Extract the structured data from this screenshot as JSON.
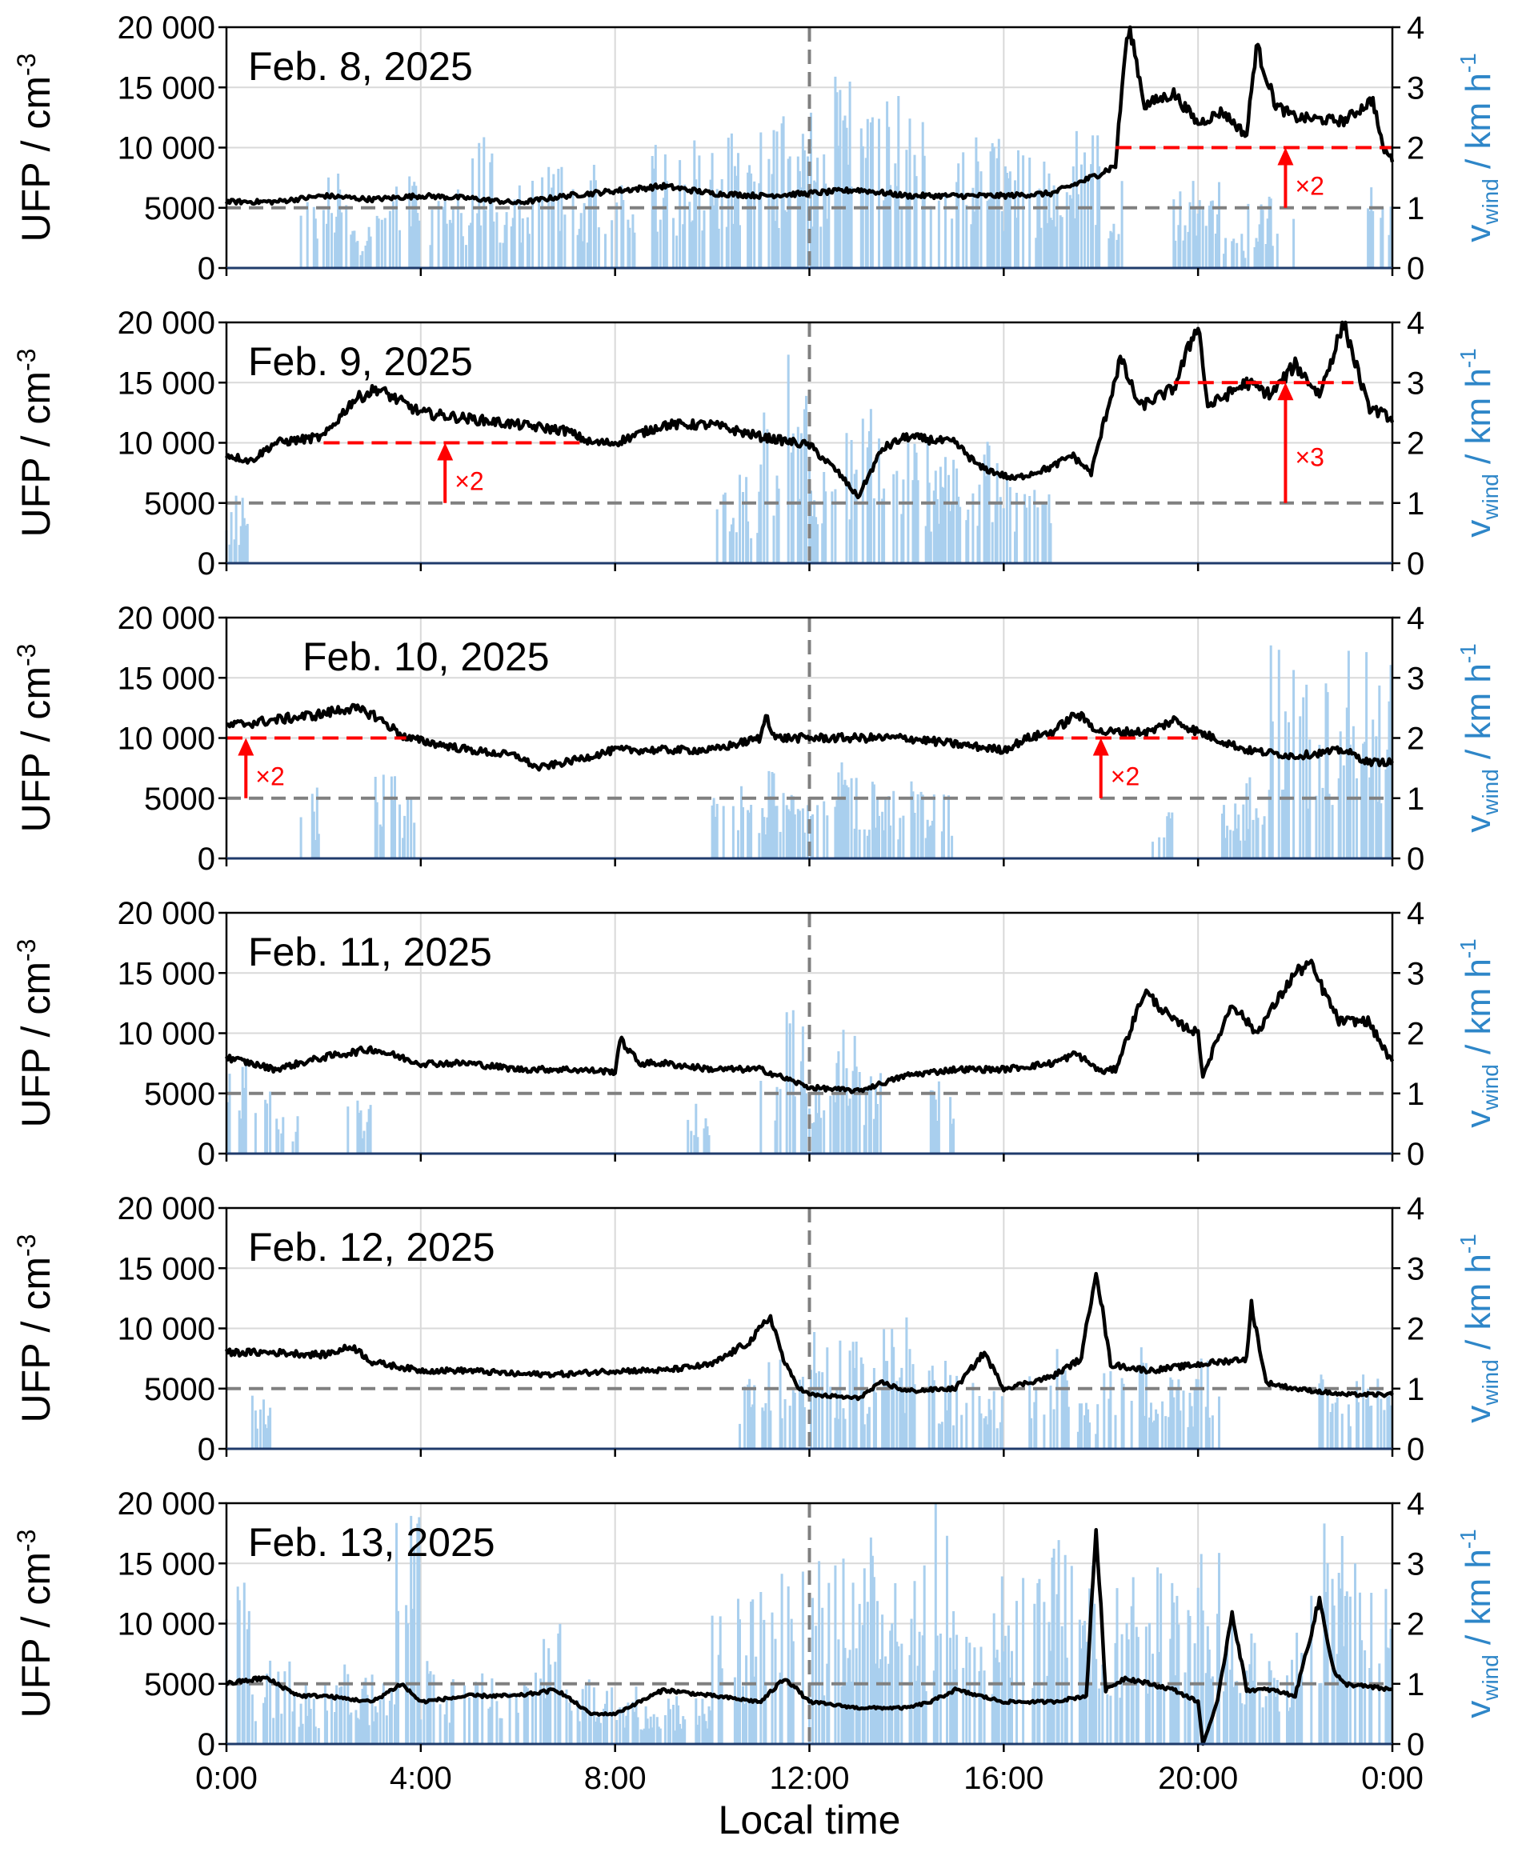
{
  "chart_data": {
    "type": "line",
    "xlabel": "Local time",
    "x_ticks": [
      "0:00",
      "4:00",
      "8:00",
      "12:00",
      "16:00",
      "20:00",
      "0:00"
    ],
    "x_range_hours": [
      0,
      24
    ],
    "left_axis": {
      "label_main": "UFP / cm",
      "label_sup": "-3",
      "ylim": [
        0,
        20000
      ],
      "ticks": [
        "0",
        "5000",
        "10 000",
        "15 000",
        "20 000"
      ],
      "tick_values": [
        0,
        5000,
        10000,
        15000,
        20000
      ]
    },
    "right_axis": {
      "label_main": "v",
      "label_sub": "wind",
      "label_rest": " / km h",
      "label_sup": "-1",
      "ylim": [
        0,
        4
      ],
      "ticks": [
        "0",
        "1",
        "2",
        "3",
        "4"
      ],
      "tick_values": [
        0,
        1,
        2,
        3,
        4
      ]
    },
    "reference_lines": {
      "ufp_baseline": 5000,
      "noon_hour": 12
    },
    "colors": {
      "ufp": "#000000",
      "wind": "#a9cfee",
      "wind_axis": "#2e86c8",
      "baseline": "#808080",
      "annotation": "#ff0000",
      "grid": "#d9d9d9"
    },
    "panels": [
      {
        "date": "Feb. 8, 2025",
        "ufp": {
          "x": [
            0,
            1,
            2,
            3,
            4,
            5,
            6,
            7,
            8,
            9,
            10,
            11,
            12,
            13,
            14,
            15,
            16,
            17,
            17.8,
            18.3,
            18.5,
            18.6,
            18.9,
            19.5,
            20,
            20.5,
            21,
            21.2,
            21.6,
            22,
            23,
            23.6,
            23.8,
            24
          ],
          "y": [
            5500,
            5500,
            6000,
            5700,
            6000,
            5800,
            5400,
            6000,
            6400,
            6800,
            6200,
            6000,
            6200,
            6500,
            6000,
            6000,
            6000,
            6200,
            7500,
            8500,
            18000,
            20000,
            13500,
            14500,
            12000,
            13000,
            11000,
            18500,
            13500,
            12500,
            12200,
            14000,
            10000,
            9000
          ]
        },
        "wind_max": [
          0,
          0,
          0,
          1.2,
          1.6,
          0.8,
          1.3,
          1.6,
          1.5,
          1.5,
          2.2,
          1.2,
          1.5,
          1.8,
          1.5,
          2,
          1.8,
          2.2,
          2,
          2.4,
          2.3,
          2.6,
          2.6,
          2.3,
          2.7,
          3.5,
          2.7,
          3,
          2.5,
          2.2,
          2.3,
          2.2,
          2,
          2,
          1.8,
          2.5,
          1.8,
          0,
          0,
          1.5,
          1.5,
          0.6,
          1.3,
          1.3,
          0,
          0,
          0,
          1.4
        ],
        "annotations": [
          {
            "level": 10000,
            "from_hour": 18.3,
            "to_hour": 24,
            "arrow_hour": 21.8,
            "label": "×2"
          }
        ]
      },
      {
        "date": "Feb. 9, 2025",
        "ufp": {
          "x": [
            0,
            0.5,
            1,
            2,
            2.6,
            3.1,
            4,
            5,
            6,
            7,
            7.5,
            8,
            9,
            10,
            11,
            12,
            12.6,
            13,
            13.5,
            14,
            15,
            15.5,
            16.2,
            17,
            17.4,
            17.8,
            18.4,
            18.8,
            19.5,
            20,
            20.2,
            21,
            21.5,
            22,
            22.5,
            23,
            23.5,
            24
          ],
          "y": [
            9000,
            8500,
            10000,
            10500,
            13500,
            14500,
            12500,
            12000,
            11500,
            11000,
            10000,
            10000,
            11500,
            11500,
            10500,
            9800,
            7500,
            5500,
            9500,
            10500,
            10000,
            8000,
            7000,
            8000,
            9000,
            7500,
            17000,
            13000,
            14500,
            20000,
            13000,
            15000,
            14000,
            16500,
            14000,
            20000,
            13000,
            12000
          ]
        },
        "wind_max": [
          1.2,
          0,
          0,
          0,
          0,
          0,
          0,
          0,
          0,
          0,
          0,
          0,
          0,
          0,
          0,
          0,
          0,
          0,
          0,
          0,
          1.2,
          1.5,
          2.8,
          3.5,
          2.5,
          2.3,
          3.2,
          2.5,
          2.2,
          2,
          1.6,
          2.2,
          1.5,
          1.4,
          0,
          0,
          0,
          0,
          0,
          0,
          0,
          0,
          0,
          0,
          0,
          0,
          0,
          0
        ],
        "annotations": [
          {
            "level": 10000,
            "from_hour": 2.0,
            "to_hour": 7.3,
            "arrow_hour": 4.5,
            "label": "×2"
          },
          {
            "level": 15000,
            "from_hour": 19.5,
            "to_hour": 23.2,
            "arrow_hour": 21.8,
            "label": "×3"
          }
        ]
      },
      {
        "date": "Feb. 10, 2025",
        "ufp": {
          "x": [
            0,
            1,
            2,
            2.5,
            3,
            3.7,
            5,
            6,
            6.4,
            7,
            8,
            9,
            10,
            11,
            11.1,
            11.3,
            12,
            13,
            14,
            15,
            16,
            16.5,
            17,
            17.5,
            18,
            19,
            19.5,
            20,
            21,
            22,
            23,
            23.5,
            24
          ],
          "y": [
            11000,
            11500,
            12000,
            12500,
            12000,
            10000,
            9000,
            8500,
            7500,
            8000,
            9000,
            9000,
            9000,
            10000,
            12000,
            10000,
            10000,
            10000,
            10000,
            9500,
            9000,
            10000,
            10500,
            12000,
            10500,
            10500,
            11500,
            10500,
            9000,
            8500,
            9000,
            8000,
            8000
          ]
        },
        "wind_max": [
          0,
          0,
          0,
          1.2,
          0,
          0,
          1.4,
          1.1,
          0,
          0,
          0,
          0,
          0,
          0,
          0,
          0,
          0,
          0,
          0,
          0,
          1.2,
          1.3,
          1.5,
          1.3,
          1.3,
          1.6,
          1.3,
          1.2,
          1.3,
          1.4,
          0,
          0,
          0,
          0,
          0,
          0,
          0,
          0,
          0.8,
          0,
          0,
          1,
          1.5,
          3.6,
          3,
          3,
          3.6,
          3.3
        ],
        "annotations": [
          {
            "level": 10000,
            "from_hour": 0,
            "to_hour": 3.7,
            "arrow_hour": 0.4,
            "label": "×2"
          },
          {
            "level": 10000,
            "from_hour": 16.9,
            "to_hour": 20,
            "arrow_hour": 18.0,
            "label": "×2"
          }
        ]
      },
      {
        "date": "Feb. 11, 2025",
        "ufp": {
          "x": [
            0,
            1,
            2,
            3,
            4,
            5,
            6,
            7,
            8,
            8.1,
            8.5,
            9,
            10,
            11,
            12,
            13,
            14,
            15,
            16,
            17,
            17.5,
            18,
            18.3,
            18.9,
            19.5,
            20,
            20.1,
            20.7,
            21.2,
            22,
            22.3,
            22.9,
            23.5,
            24
          ],
          "y": [
            8000,
            7000,
            8000,
            8700,
            7500,
            7500,
            7000,
            7000,
            6800,
            9500,
            7500,
            7500,
            7000,
            7000,
            5500,
            5200,
            6500,
            7000,
            7000,
            7500,
            8300,
            6800,
            7000,
            13500,
            11000,
            10000,
            6500,
            12500,
            10000,
            15000,
            15800,
            11000,
            11000,
            7500
          ]
        },
        "wind_max": [
          2.1,
          1.2,
          0.8,
          0,
          0,
          1,
          0,
          0,
          0,
          0,
          0,
          0,
          0,
          0,
          0,
          0,
          0,
          0,
          0,
          1,
          0,
          0,
          1.4,
          2.5,
          1.2,
          2.3,
          1.4,
          0,
          0,
          1.3,
          0,
          0,
          0,
          0,
          0,
          0,
          0,
          0,
          0,
          0,
          0,
          0,
          0,
          0,
          0,
          0,
          0,
          0
        ],
        "annotations": []
      },
      {
        "date": "Feb. 12, 2025",
        "ufp": {
          "x": [
            0,
            1,
            2,
            2.6,
            3,
            4,
            5,
            6,
            7,
            8,
            9,
            10,
            10.8,
            11.2,
            11.5,
            11.8,
            12,
            13,
            13.5,
            14,
            15,
            15.6,
            16,
            17,
            17.6,
            17.9,
            18.2,
            19,
            20,
            21,
            21.1,
            21.4,
            22,
            23,
            24
          ],
          "y": [
            8000,
            8000,
            7800,
            8500,
            7200,
            6500,
            6500,
            6200,
            6200,
            6500,
            6500,
            7000,
            9000,
            11000,
            7000,
            5000,
            4500,
            4200,
            5500,
            4800,
            5000,
            8000,
            5000,
            6000,
            7500,
            15000,
            7000,
            6500,
            7000,
            7500,
            12000,
            5500,
            5000,
            4500,
            4500
          ]
        },
        "wind_max": [
          0,
          1,
          0,
          0,
          0,
          0,
          0,
          0,
          0,
          0,
          0,
          0,
          0,
          0,
          0,
          0,
          0,
          0,
          0,
          0,
          0,
          1.3,
          1.5,
          1.7,
          2,
          1.8,
          1.6,
          2.1,
          2.2,
          1.5,
          1.5,
          1,
          0,
          1.3,
          1.8,
          0.8,
          1.5,
          1.8,
          1.2,
          1.3,
          1.5,
          0,
          0,
          0,
          0,
          1.3,
          1.5,
          1.4
        ],
        "annotations": []
      },
      {
        "date": "Feb. 13, 2025",
        "ufp": {
          "x": [
            0,
            0.8,
            1.5,
            2,
            3,
            3.6,
            4,
            5,
            6,
            6.8,
            7.5,
            8,
            9,
            10,
            11,
            11.5,
            12,
            13,
            14,
            14.5,
            15,
            16,
            17,
            17.7,
            17.9,
            18.1,
            18.5,
            19,
            19.5,
            20,
            20.1,
            20.4,
            20.7,
            21,
            21.5,
            22,
            22.5,
            22.8,
            23,
            24
          ],
          "y": [
            5000,
            5500,
            4000,
            4000,
            3500,
            5000,
            3500,
            4000,
            4000,
            4500,
            2500,
            2500,
            4500,
            4000,
            3500,
            5500,
            3500,
            3000,
            3000,
            3500,
            4500,
            3500,
            3500,
            4000,
            18000,
            4500,
            5500,
            5000,
            4500,
            3500,
            0,
            3500,
            11000,
            4500,
            4500,
            4000,
            12000,
            6000,
            5000,
            4500
          ]
        },
        "wind_max": [
          2.8,
          1.4,
          1.4,
          1,
          1.5,
          1.2,
          1.2,
          4,
          1.5,
          1.2,
          1.6,
          1,
          1.2,
          2.3,
          1.1,
          1,
          1,
          0.8,
          0.8,
          1,
          2.4,
          2.6,
          3,
          3,
          3.2,
          3.5,
          3.5,
          3.5,
          3.3,
          4,
          3.6,
          3,
          3.2,
          3.2,
          3.5,
          3.5,
          2.8,
          3,
          3,
          2.5,
          3.6,
          2.5,
          2,
          1.5,
          3.2,
          4,
          3,
          2.8
        ],
        "annotations": []
      }
    ]
  }
}
